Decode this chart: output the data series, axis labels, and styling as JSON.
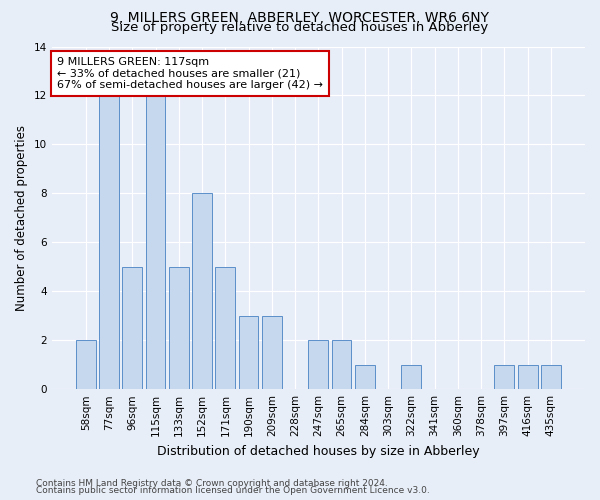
{
  "title_line1": "9, MILLERS GREEN, ABBERLEY, WORCESTER, WR6 6NY",
  "title_line2": "Size of property relative to detached houses in Abberley",
  "xlabel": "Distribution of detached houses by size in Abberley",
  "ylabel": "Number of detached properties",
  "categories": [
    "58sqm",
    "77sqm",
    "96sqm",
    "115sqm",
    "133sqm",
    "152sqm",
    "171sqm",
    "190sqm",
    "209sqm",
    "228sqm",
    "247sqm",
    "265sqm",
    "284sqm",
    "303sqm",
    "322sqm",
    "341sqm",
    "360sqm",
    "378sqm",
    "397sqm",
    "416sqm",
    "435sqm"
  ],
  "values": [
    2,
    12,
    5,
    12,
    5,
    8,
    5,
    3,
    3,
    0,
    2,
    2,
    1,
    0,
    1,
    0,
    0,
    0,
    1,
    1,
    1
  ],
  "bar_color": "#c5d8ed",
  "bar_edge_color": "#5b8fc9",
  "ylim": [
    0,
    14
  ],
  "yticks": [
    0,
    2,
    4,
    6,
    8,
    10,
    12,
    14
  ],
  "annotation_box_text": "9 MILLERS GREEN: 117sqm\n← 33% of detached houses are smaller (21)\n67% of semi-detached houses are larger (42) →",
  "annotation_box_color": "#ffffff",
  "annotation_box_edge_color": "#cc0000",
  "footer_line1": "Contains HM Land Registry data © Crown copyright and database right 2024.",
  "footer_line2": "Contains public sector information licensed under the Open Government Licence v3.0.",
  "background_color": "#e8eef8",
  "grid_color": "#ffffff",
  "title_fontsize": 10,
  "subtitle_fontsize": 9.5,
  "ylabel_fontsize": 8.5,
  "xlabel_fontsize": 9,
  "tick_fontsize": 7.5,
  "annotation_fontsize": 8,
  "footer_fontsize": 6.5
}
